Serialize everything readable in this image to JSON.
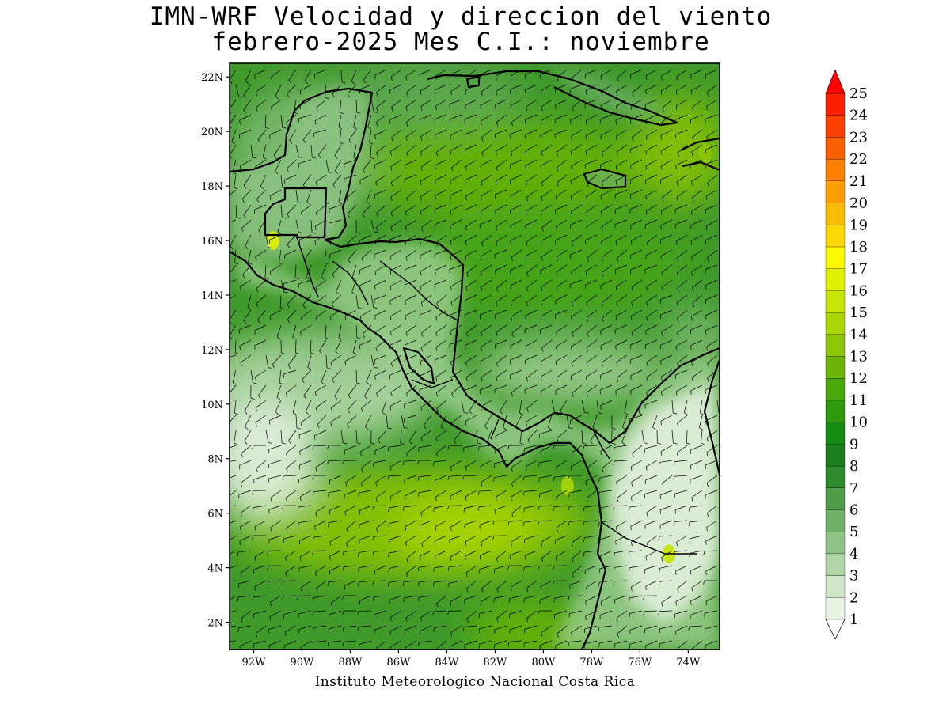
{
  "title": {
    "line1": "IMN-WRF Velocidad y direccion del viento",
    "line2": "febrero-2025 Mes C.I.: noviembre"
  },
  "credit": "Instituto Meteorologico Nacional Costa Rica",
  "map": {
    "region": "Central America, Caribbean and Eastern Pacific",
    "lon_range": [
      -93.0,
      -72.7
    ],
    "lat_range": [
      1.0,
      22.5
    ],
    "lat_ticks": [
      {
        "value": 2,
        "label": "2N"
      },
      {
        "value": 4,
        "label": "4N"
      },
      {
        "value": 6,
        "label": "6N"
      },
      {
        "value": 8,
        "label": "8N"
      },
      {
        "value": 10,
        "label": "10N"
      },
      {
        "value": 12,
        "label": "12N"
      },
      {
        "value": 14,
        "label": "14N"
      },
      {
        "value": 16,
        "label": "16N"
      },
      {
        "value": 18,
        "label": "18N"
      },
      {
        "value": 20,
        "label": "20N"
      },
      {
        "value": 22,
        "label": "22N"
      }
    ],
    "lon_ticks": [
      {
        "value": -92,
        "label": "92W"
      },
      {
        "value": -90,
        "label": "90W"
      },
      {
        "value": -88,
        "label": "88W"
      },
      {
        "value": -86,
        "label": "86W"
      },
      {
        "value": -84,
        "label": "84W"
      },
      {
        "value": -82,
        "label": "82W"
      },
      {
        "value": -80,
        "label": "80W"
      },
      {
        "value": -78,
        "label": "78W"
      },
      {
        "value": -76,
        "label": "76W"
      },
      {
        "value": -74,
        "label": "74W"
      }
    ],
    "background_color": "#3f9a2a",
    "land_color": "#8ec27e",
    "coast_color": "#000000"
  },
  "colorbar": {
    "levels": [
      "1",
      "2",
      "3",
      "4",
      "5",
      "6",
      "7",
      "8",
      "9",
      "10",
      "11",
      "12",
      "13",
      "14",
      "15",
      "16",
      "17",
      "18",
      "19",
      "20",
      "21",
      "22",
      "23",
      "24",
      "25"
    ],
    "colors": [
      "#e8f3e4",
      "#cfe6c8",
      "#b0d6a6",
      "#8ec385",
      "#6fb067",
      "#4f9c49",
      "#2f8a2d",
      "#1b7d1b",
      "#138a10",
      "#2c9b0b",
      "#4aa80a",
      "#6cb508",
      "#8ec506",
      "#aad605",
      "#c7e402",
      "#e0f100",
      "#fbf800",
      "#fbd900",
      "#fbbc00",
      "#fb9e00",
      "#fb7f00",
      "#fb6000",
      "#fb4000",
      "#fb2000",
      "#ff0000"
    ]
  },
  "hotspots": [
    {
      "lon": -79.0,
      "lat": 7.0,
      "speed": 14
    },
    {
      "lon": -74.8,
      "lat": 4.5,
      "speed": 15
    },
    {
      "lon": -91.2,
      "lat": 16.0,
      "speed": 16
    },
    {
      "lon": -73.3,
      "lat": 19.2,
      "speed": 13
    }
  ]
}
